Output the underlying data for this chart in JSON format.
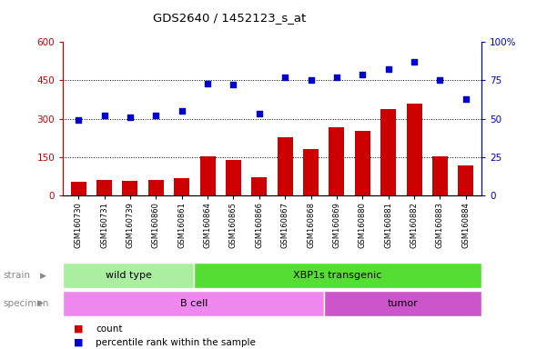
{
  "title": "GDS2640 / 1452123_s_at",
  "samples": [
    "GSM160730",
    "GSM160731",
    "GSM160739",
    "GSM160860",
    "GSM160861",
    "GSM160864",
    "GSM160865",
    "GSM160866",
    "GSM160867",
    "GSM160868",
    "GSM160869",
    "GSM160880",
    "GSM160881",
    "GSM160882",
    "GSM160883",
    "GSM160884"
  ],
  "counts": [
    52,
    62,
    58,
    62,
    68,
    152,
    138,
    72,
    228,
    182,
    268,
    252,
    338,
    358,
    152,
    118
  ],
  "percentiles": [
    49,
    52,
    51,
    52,
    55,
    73,
    72,
    53,
    77,
    75,
    77,
    79,
    82,
    87,
    75,
    63
  ],
  "ylim_left": [
    0,
    600
  ],
  "ylim_right": [
    0,
    100
  ],
  "yticks_left": [
    0,
    150,
    300,
    450,
    600
  ],
  "yticks_right": [
    0,
    25,
    50,
    75,
    100
  ],
  "ytick_labels_left": [
    "0",
    "150",
    "300",
    "450",
    "600"
  ],
  "ytick_labels_right": [
    "0",
    "25",
    "50",
    "75",
    "100%"
  ],
  "bar_color": "#cc0000",
  "dot_color": "#0000cc",
  "strain_groups": [
    {
      "label": "wild type",
      "start": 0,
      "end": 5,
      "color": "#aaeea0"
    },
    {
      "label": "XBP1s transgenic",
      "start": 5,
      "end": 16,
      "color": "#55dd33"
    }
  ],
  "specimen_groups": [
    {
      "label": "B cell",
      "start": 0,
      "end": 10,
      "color": "#ee88ee"
    },
    {
      "label": "tumor",
      "start": 10,
      "end": 16,
      "color": "#cc55cc"
    }
  ],
  "legend_items": [
    {
      "label": "count",
      "color": "#cc0000"
    },
    {
      "label": "percentile rank within the sample",
      "color": "#0000cc"
    }
  ],
  "strain_label": "strain",
  "specimen_label": "specimen",
  "tick_label_color_left": "#cc0000",
  "tick_label_color_right": "#0000cc"
}
